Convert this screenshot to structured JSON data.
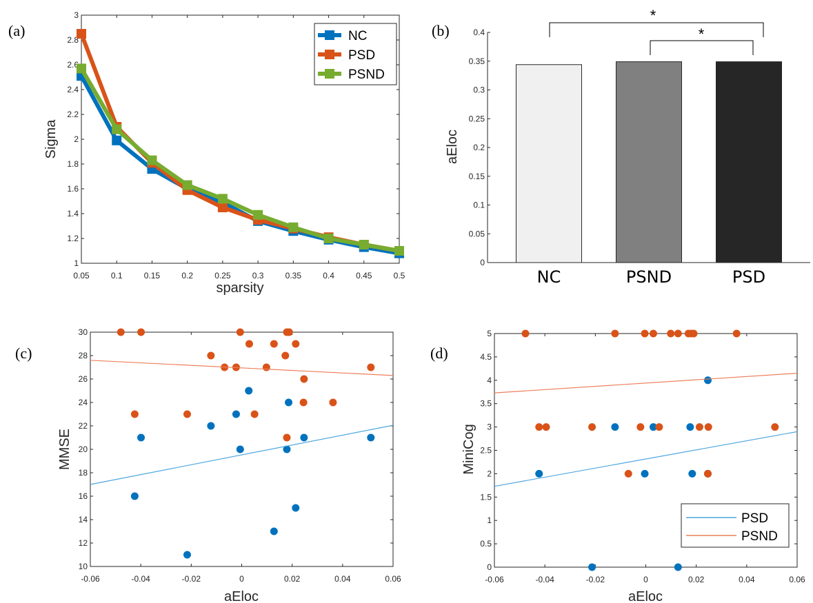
{
  "chart_data": [
    {
      "panel_label": "(a)",
      "type": "line",
      "xlabel": "sparsity",
      "ylabel": "Sigma",
      "xlim": [
        0.05,
        0.5
      ],
      "ylim": [
        1,
        3
      ],
      "xticks": [
        "0.05",
        "0.1",
        "0.15",
        "0.2",
        "0.25",
        "0.3",
        "0.35",
        "0.4",
        "0.45",
        "0.5"
      ],
      "yticks": [
        "1",
        "1.2",
        "1.4",
        "1.6",
        "1.8",
        "2",
        "2.2",
        "2.4",
        "2.6",
        "2.8",
        "3"
      ],
      "x": [
        0.05,
        0.1,
        0.15,
        0.2,
        0.25,
        0.3,
        0.35,
        0.4,
        0.45,
        0.5
      ],
      "series": [
        {
          "name": "NC",
          "color": "#0072BD",
          "values": [
            2.51,
            1.99,
            1.76,
            1.6,
            1.49,
            1.34,
            1.26,
            1.19,
            1.13,
            1.08
          ]
        },
        {
          "name": "PSD",
          "color": "#D95319",
          "values": [
            2.85,
            2.1,
            1.81,
            1.59,
            1.45,
            1.35,
            1.28,
            1.21,
            1.15,
            1.1
          ]
        },
        {
          "name": "PSND",
          "color": "#77AC30",
          "values": [
            2.57,
            2.08,
            1.83,
            1.63,
            1.52,
            1.39,
            1.29,
            1.2,
            1.15,
            1.1
          ]
        }
      ],
      "legend": "top-right",
      "grid": false
    },
    {
      "panel_label": "(b)",
      "type": "bar",
      "ylabel": "aEloc",
      "ylim": [
        0,
        0.4
      ],
      "yticks": [
        "0",
        "0.05",
        "0.1",
        "0.15",
        "0.2",
        "0.25",
        "0.3",
        "0.35",
        "0.4"
      ],
      "categories": [
        "NC",
        "PSND",
        "PSD"
      ],
      "values": [
        0.344,
        0.349,
        0.349
      ],
      "bar_colors": [
        "#F0F0F0",
        "#808080",
        "#262626"
      ],
      "significance": [
        {
          "from": "NC",
          "to": "PSD",
          "mark": "*"
        },
        {
          "from": "PSND",
          "to": "PSD",
          "mark": "*"
        }
      ],
      "grid": false
    },
    {
      "panel_label": "(c)",
      "type": "scatter",
      "xlabel": "aEloc",
      "ylabel": "MMSE",
      "xlim": [
        -0.06,
        0.06
      ],
      "ylim": [
        10,
        30
      ],
      "xticks": [
        "-0.06",
        "-0.04",
        "-0.02",
        "0",
        "0.02",
        "0.04",
        "0.06"
      ],
      "yticks": [
        "10",
        "12",
        "14",
        "16",
        "18",
        "20",
        "22",
        "24",
        "26",
        "28",
        "30"
      ],
      "series": [
        {
          "name": "PSD",
          "color": "#0072BD",
          "points": [
            [
              0.0028,
              25
            ],
            [
              0.0186,
              24
            ],
            [
              -0.0022,
              23
            ],
            [
              -0.0122,
              22
            ],
            [
              -0.0399,
              21
            ],
            [
              0.0247,
              21
            ],
            [
              0.0512,
              21
            ],
            [
              -0.0006,
              20
            ],
            [
              0.0179,
              20
            ],
            [
              -0.0424,
              16
            ],
            [
              0.0214,
              15
            ],
            [
              0.0128,
              13
            ],
            [
              -0.0216,
              11
            ]
          ],
          "fit": [
            [
              -0.06,
              17.0
            ],
            [
              0.06,
              22.05
            ]
          ],
          "fit_color": "#4DA6E0"
        },
        {
          "name": "PSND",
          "color": "#D95319",
          "points": [
            [
              -0.0479,
              30
            ],
            [
              -0.0399,
              30
            ],
            [
              -0.0006,
              30
            ],
            [
              0.0179,
              30
            ],
            [
              0.0188,
              30
            ],
            [
              0.003,
              29
            ],
            [
              0.0128,
              29
            ],
            [
              0.0214,
              29
            ],
            [
              -0.0122,
              28
            ],
            [
              0.0173,
              28
            ],
            [
              -0.0068,
              27
            ],
            [
              -0.0022,
              27
            ],
            [
              0.0098,
              27
            ],
            [
              0.0512,
              27
            ],
            [
              0.0247,
              26
            ],
            [
              0.0245,
              24
            ],
            [
              0.0362,
              24
            ],
            [
              -0.0424,
              23
            ],
            [
              -0.0216,
              23
            ],
            [
              0.0051,
              23
            ],
            [
              0.0179,
              21
            ]
          ],
          "fit": [
            [
              -0.06,
              27.6
            ],
            [
              0.06,
              26.3
            ]
          ],
          "fit_color": "#EC7F5A"
        }
      ],
      "grid": false
    },
    {
      "panel_label": "(d)",
      "type": "scatter",
      "xlabel": "aEloc",
      "ylabel": "MiniCog",
      "xlim": [
        -0.06,
        0.06
      ],
      "ylim": [
        0,
        5
      ],
      "xticks": [
        "-0.06",
        "-0.04",
        "-0.02",
        "0",
        "0.02",
        "0.04",
        "0.06"
      ],
      "yticks": [
        "0",
        "0.5",
        "1",
        "1.5",
        "2",
        "2.5",
        "3",
        "3.5",
        "4",
        "4.5",
        "5"
      ],
      "series": [
        {
          "name": "PSD",
          "color": "#0072BD",
          "points": [
            [
              0.0246,
              4
            ],
            [
              -0.0122,
              3
            ],
            [
              0.003,
              3
            ],
            [
              0.0176,
              3
            ],
            [
              -0.0423,
              2
            ],
            [
              -0.0004,
              2
            ],
            [
              0.0184,
              2
            ],
            [
              0.0246,
              2
            ],
            [
              -0.0213,
              0
            ],
            [
              0.0128,
              0
            ]
          ],
          "fit": [
            [
              -0.06,
              1.73
            ],
            [
              0.06,
              2.9
            ]
          ],
          "fit_color": "#4DA6E0"
        },
        {
          "name": "PSND",
          "color": "#D95319",
          "points": [
            [
              -0.0477,
              5
            ],
            [
              -0.0122,
              5
            ],
            [
              -0.0004,
              5
            ],
            [
              0.003,
              5
            ],
            [
              0.0099,
              5
            ],
            [
              0.0128,
              5
            ],
            [
              0.0169,
              5
            ],
            [
              0.018,
              5
            ],
            [
              0.019,
              5
            ],
            [
              0.036,
              5
            ],
            [
              -0.0423,
              3
            ],
            [
              -0.0395,
              3
            ],
            [
              -0.0213,
              3
            ],
            [
              -0.0021,
              3
            ],
            [
              0.0053,
              3
            ],
            [
              0.0213,
              3
            ],
            [
              0.0248,
              3
            ],
            [
              0.0512,
              3
            ],
            [
              -0.0069,
              2
            ],
            [
              0.0246,
              2
            ]
          ],
          "fit": [
            [
              -0.06,
              3.73
            ],
            [
              0.06,
              4.15
            ]
          ],
          "fit_color": "#EC7F5A"
        }
      ],
      "legend": "bottom-right",
      "grid": false
    }
  ]
}
